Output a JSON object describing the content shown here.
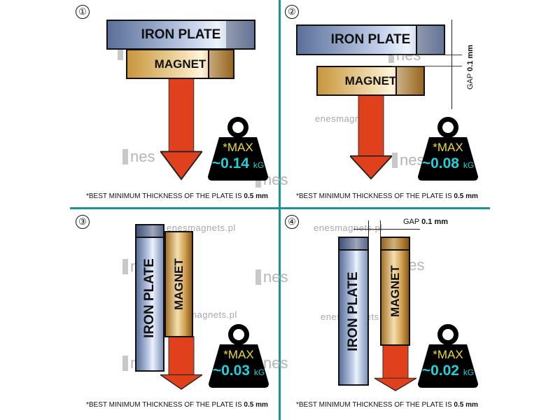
{
  "panels": [
    {
      "number": "①",
      "plate": "IRON PLATE",
      "magnet": "MAGNET",
      "max": "*MAX",
      "value": "~0.14",
      "unit": "kG",
      "note": "*BEST MINIMUM THICKNESS OF THE PLATE IS ",
      "note_bold": "0.5 mm"
    },
    {
      "number": "②",
      "plate": "IRON PLATE",
      "magnet": "MAGNET",
      "max": "*MAX",
      "value": "~0.08",
      "unit": "kG",
      "gap_label": "GAP",
      "gap_value": "0.1 mm",
      "note": "*BEST MINIMUM THICKNESS OF THE PLATE IS ",
      "note_bold": "0.5 mm"
    },
    {
      "number": "③",
      "plate": "IRON PLATE",
      "magnet": "MAGNET",
      "max": "*MAX",
      "value": "~0.03",
      "unit": "kG",
      "note": "*BEST MINIMUM THICKNESS OF THE PLATE IS ",
      "note_bold": "0.5 mm"
    },
    {
      "number": "④",
      "plate": "IRON PLATE",
      "magnet": "MAGNET",
      "max": "*MAX",
      "value": "~0.02",
      "unit": "kG",
      "gap_label": "GAP",
      "gap_value": "0.1 mm",
      "note": "*BEST MINIMUM THICKNESS OF THE PLATE IS ",
      "note_bold": "0.5 mm"
    }
  ],
  "watermark": {
    "site": "enesmagnets.pl",
    "logo": "nes"
  },
  "colors": {
    "divider": "#1b9393",
    "arrow": "#e0401c",
    "weight": "#000000",
    "max_text": "#e9d93a",
    "value_text": "#22d0d8"
  }
}
